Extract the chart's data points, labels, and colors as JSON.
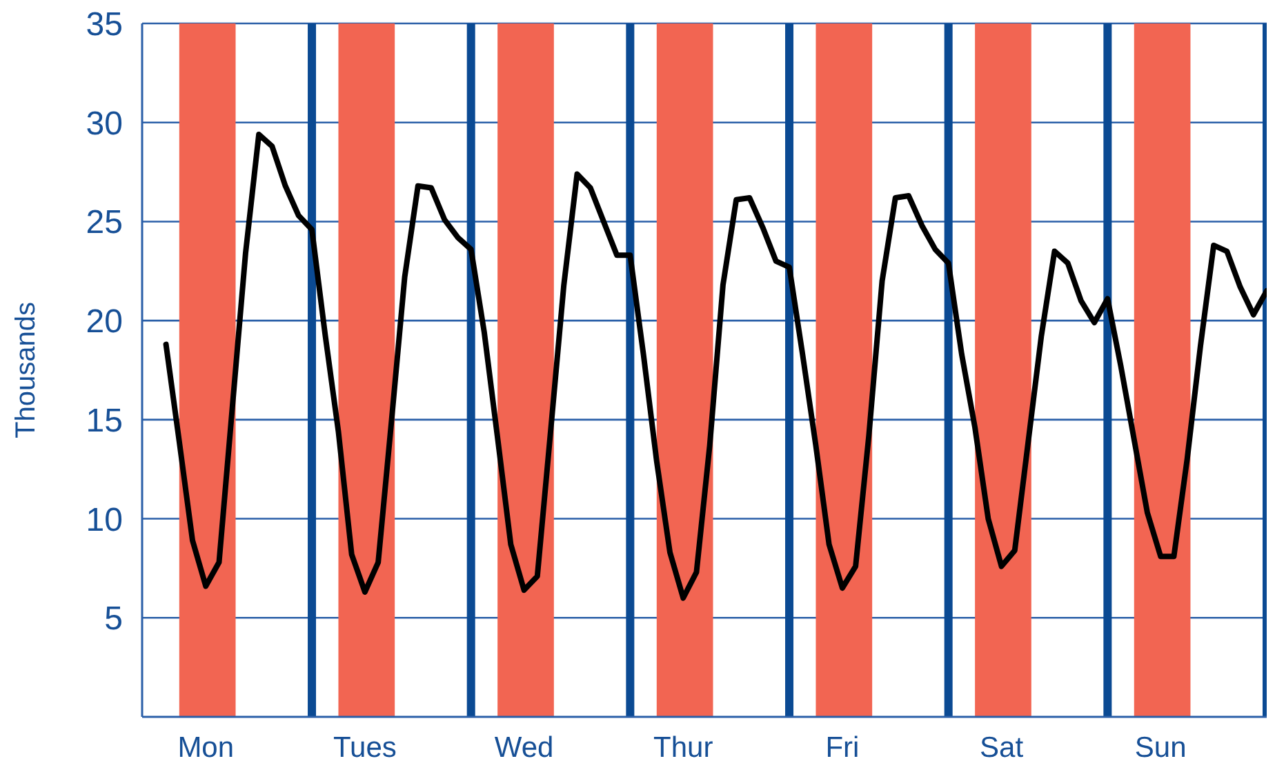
{
  "chart_data": {
    "type": "line",
    "ylabel": "Thousands",
    "categories": [
      null,
      null,
      null,
      null,
      "Mon",
      null,
      null,
      null,
      null,
      null,
      null,
      null,
      null,
      null,
      null,
      null,
      "Tues",
      null,
      null,
      null,
      null,
      null,
      null,
      null,
      null,
      null,
      null,
      null,
      "Wed",
      null,
      null,
      null,
      null,
      null,
      null,
      null,
      null,
      null,
      null,
      null,
      "Thur",
      null,
      null,
      null,
      null,
      null,
      null,
      null,
      null,
      null,
      null,
      null,
      "Fri",
      null,
      null,
      null,
      null,
      null,
      null,
      null,
      null,
      null,
      null,
      null,
      "Sat",
      null,
      null,
      null,
      null,
      null,
      null,
      null,
      null,
      null,
      null,
      null,
      "Sun",
      null,
      null,
      null,
      null,
      null,
      null,
      null,
      null
    ],
    "series": [
      {
        "color": "#000000",
        "values": [
          null,
          18.8,
          13.9,
          8.9,
          6.6,
          7.8,
          15.6,
          23.4,
          29.4,
          28.8,
          26.8,
          25.3,
          24.6,
          19.3,
          14.4,
          8.2,
          6.3,
          7.8,
          14.9,
          22.2,
          26.8,
          26.7,
          25.1,
          24.2,
          23.6,
          19.4,
          14.1,
          8.7,
          6.4,
          7.1,
          14.4,
          21.8,
          27.4,
          26.7,
          25,
          23.3,
          23.3,
          18.3,
          12.9,
          8.3,
          6,
          7.3,
          13.7,
          21.8,
          26.1,
          26.2,
          24.7,
          23,
          22.7,
          18.3,
          13.7,
          8.7,
          6.5,
          7.6,
          14.2,
          22,
          26.2,
          26.3,
          24.8,
          23.6,
          22.9,
          18.3,
          14.6,
          10,
          7.6,
          8.4,
          13.8,
          19.2,
          23.5,
          22.9,
          21,
          19.9,
          21.1,
          17.7,
          14,
          10.3,
          8.1,
          8.1,
          13,
          18.7,
          23.8,
          23.5,
          21.7,
          20.3,
          21.5
        ]
      }
    ],
    "ylim": [
      0,
      35
    ],
    "yticks": [
      5,
      10,
      15,
      20,
      25,
      30,
      35
    ],
    "grid": "y",
    "marker": "none",
    "line_style": "solid"
  }
}
